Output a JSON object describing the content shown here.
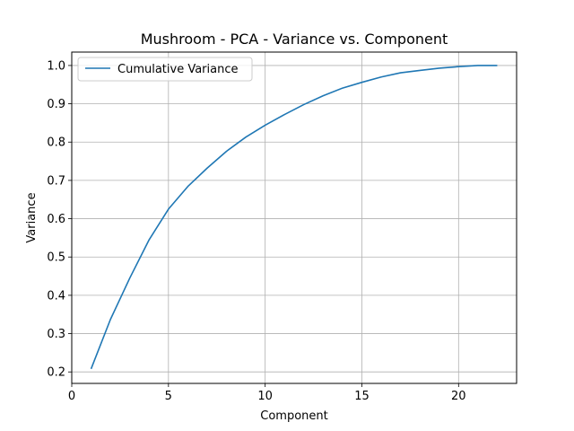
{
  "chart_data": {
    "type": "line",
    "title": "Mushroom - PCA - Variance vs. Component",
    "xlabel": "Component",
    "ylabel": "Variance",
    "xlim": [
      0,
      23
    ],
    "ylim": [
      0.17,
      1.035
    ],
    "xticks": [
      0,
      5,
      10,
      15,
      20
    ],
    "yticks": [
      0.2,
      0.3,
      0.4,
      0.5,
      0.6,
      0.7,
      0.8,
      0.9,
      1.0
    ],
    "ytick_labels": [
      "0.2",
      "0.3",
      "0.4",
      "0.5",
      "0.6",
      "0.7",
      "0.8",
      "0.9",
      "1.0"
    ],
    "grid": true,
    "legend_position": "top-left",
    "series": [
      {
        "name": "Cumulative Variance",
        "color": "#1f77b4",
        "x": [
          1,
          2,
          3,
          4,
          5,
          6,
          7,
          8,
          9,
          10,
          11,
          12,
          13,
          14,
          15,
          16,
          17,
          18,
          19,
          20,
          21,
          22
        ],
        "y": [
          0.208,
          0.337,
          0.445,
          0.545,
          0.625,
          0.684,
          0.732,
          0.776,
          0.813,
          0.844,
          0.872,
          0.898,
          0.921,
          0.941,
          0.956,
          0.97,
          0.981,
          0.987,
          0.993,
          0.997,
          1.0,
          1.0
        ]
      }
    ]
  }
}
